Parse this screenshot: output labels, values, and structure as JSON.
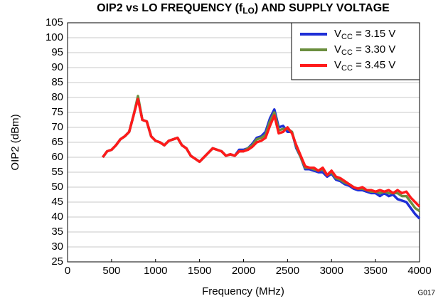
{
  "chart_data": {
    "type": "line",
    "title": [
      "OIP2 vs LO FREQUENCY (f",
      "LO",
      ") AND SUPPLY VOLTAGE"
    ],
    "xlabel": "Frequency (MHz)",
    "ylabel": "OIP2 (dBm)",
    "annotation": "G017",
    "xlim": [
      0,
      4000
    ],
    "xticks": [
      0,
      500,
      1000,
      1500,
      2000,
      2500,
      3000,
      3500,
      4000
    ],
    "ylim": [
      25,
      105
    ],
    "yticks": [
      25,
      30,
      35,
      40,
      45,
      50,
      55,
      60,
      65,
      70,
      75,
      80,
      85,
      90,
      95,
      100,
      105
    ],
    "grid": true,
    "legend": "upper right",
    "x": [
      400,
      450,
      500,
      550,
      600,
      650,
      700,
      750,
      800,
      850,
      900,
      950,
      1000,
      1050,
      1100,
      1150,
      1200,
      1250,
      1300,
      1350,
      1400,
      1450,
      1500,
      1550,
      1600,
      1650,
      1700,
      1750,
      1800,
      1850,
      1900,
      1950,
      2000,
      2050,
      2100,
      2150,
      2200,
      2250,
      2300,
      2350,
      2400,
      2450,
      2500,
      2550,
      2600,
      2650,
      2700,
      2750,
      2800,
      2850,
      2900,
      2950,
      3000,
      3050,
      3100,
      3150,
      3200,
      3250,
      3300,
      3350,
      3400,
      3450,
      3500,
      3550,
      3600,
      3650,
      3700,
      3750,
      3800,
      3850,
      3900,
      3950,
      4000
    ],
    "series": [
      {
        "name": [
          "V",
          "CC",
          " = 3.15 V"
        ],
        "color": "#1f2fd6",
        "values": [
          60,
          62,
          62.5,
          64,
          66,
          67,
          68.5,
          74,
          80,
          72.5,
          72,
          67,
          65.5,
          65,
          64,
          65.5,
          66,
          66.5,
          64,
          63,
          60.5,
          59.5,
          58.5,
          60,
          61.5,
          63,
          62.5,
          62,
          60.5,
          61,
          60.5,
          62.5,
          62.5,
          63,
          64.5,
          66.5,
          67,
          68.5,
          73,
          76,
          70,
          70.5,
          68.5,
          68.5,
          63,
          60,
          56,
          56,
          55.5,
          55,
          55,
          53.5,
          54.5,
          52.5,
          52,
          51,
          50.5,
          49.5,
          49,
          49,
          48.5,
          48,
          48,
          47,
          48,
          47,
          47.5,
          46,
          45.5,
          45,
          43,
          41,
          39.5
        ]
      },
      {
        "name": [
          "V",
          "CC",
          " = 3.30 V"
        ],
        "color": "#6b8e3e",
        "values": [
          60,
          62,
          62.5,
          64,
          66,
          67,
          68.5,
          74,
          80.5,
          72.5,
          72,
          67,
          65.5,
          65,
          64,
          65.5,
          66,
          66.5,
          64,
          63,
          60.5,
          59.5,
          58.5,
          60,
          61.5,
          63,
          62.5,
          62,
          60.5,
          61,
          60.5,
          62,
          62,
          63,
          64,
          66,
          66.5,
          67.5,
          72,
          75,
          69,
          69.5,
          69.5,
          68.5,
          63.5,
          60,
          56.5,
          56.5,
          56,
          55.5,
          56,
          54,
          55,
          53,
          52.5,
          51.5,
          51,
          50,
          49.5,
          49.5,
          49,
          48.5,
          48.5,
          48,
          48.5,
          48,
          48,
          48,
          47,
          47,
          45,
          43,
          42
        ]
      },
      {
        "name": [
          "V",
          "CC",
          " = 3.45 V"
        ],
        "color": "#ff1a1a",
        "values": [
          60,
          62,
          62.5,
          64,
          66,
          67,
          68.5,
          74,
          79.5,
          72.5,
          72,
          67,
          65.5,
          65,
          64,
          65.5,
          66,
          66.5,
          64,
          63,
          60.5,
          59.5,
          58.5,
          60,
          61.5,
          63,
          62.5,
          62,
          60.5,
          61,
          60.5,
          62,
          62,
          62.5,
          63.5,
          65,
          65.5,
          66.5,
          70.5,
          74,
          68,
          68.5,
          70,
          68,
          64,
          60.5,
          57,
          56.5,
          56.5,
          55.5,
          56.5,
          54,
          55.5,
          53.5,
          53,
          52,
          51,
          50,
          49.5,
          50,
          49,
          49,
          48.5,
          49,
          48.5,
          49,
          48,
          49,
          48,
          48.5,
          46.5,
          45,
          43.5
        ]
      }
    ]
  }
}
